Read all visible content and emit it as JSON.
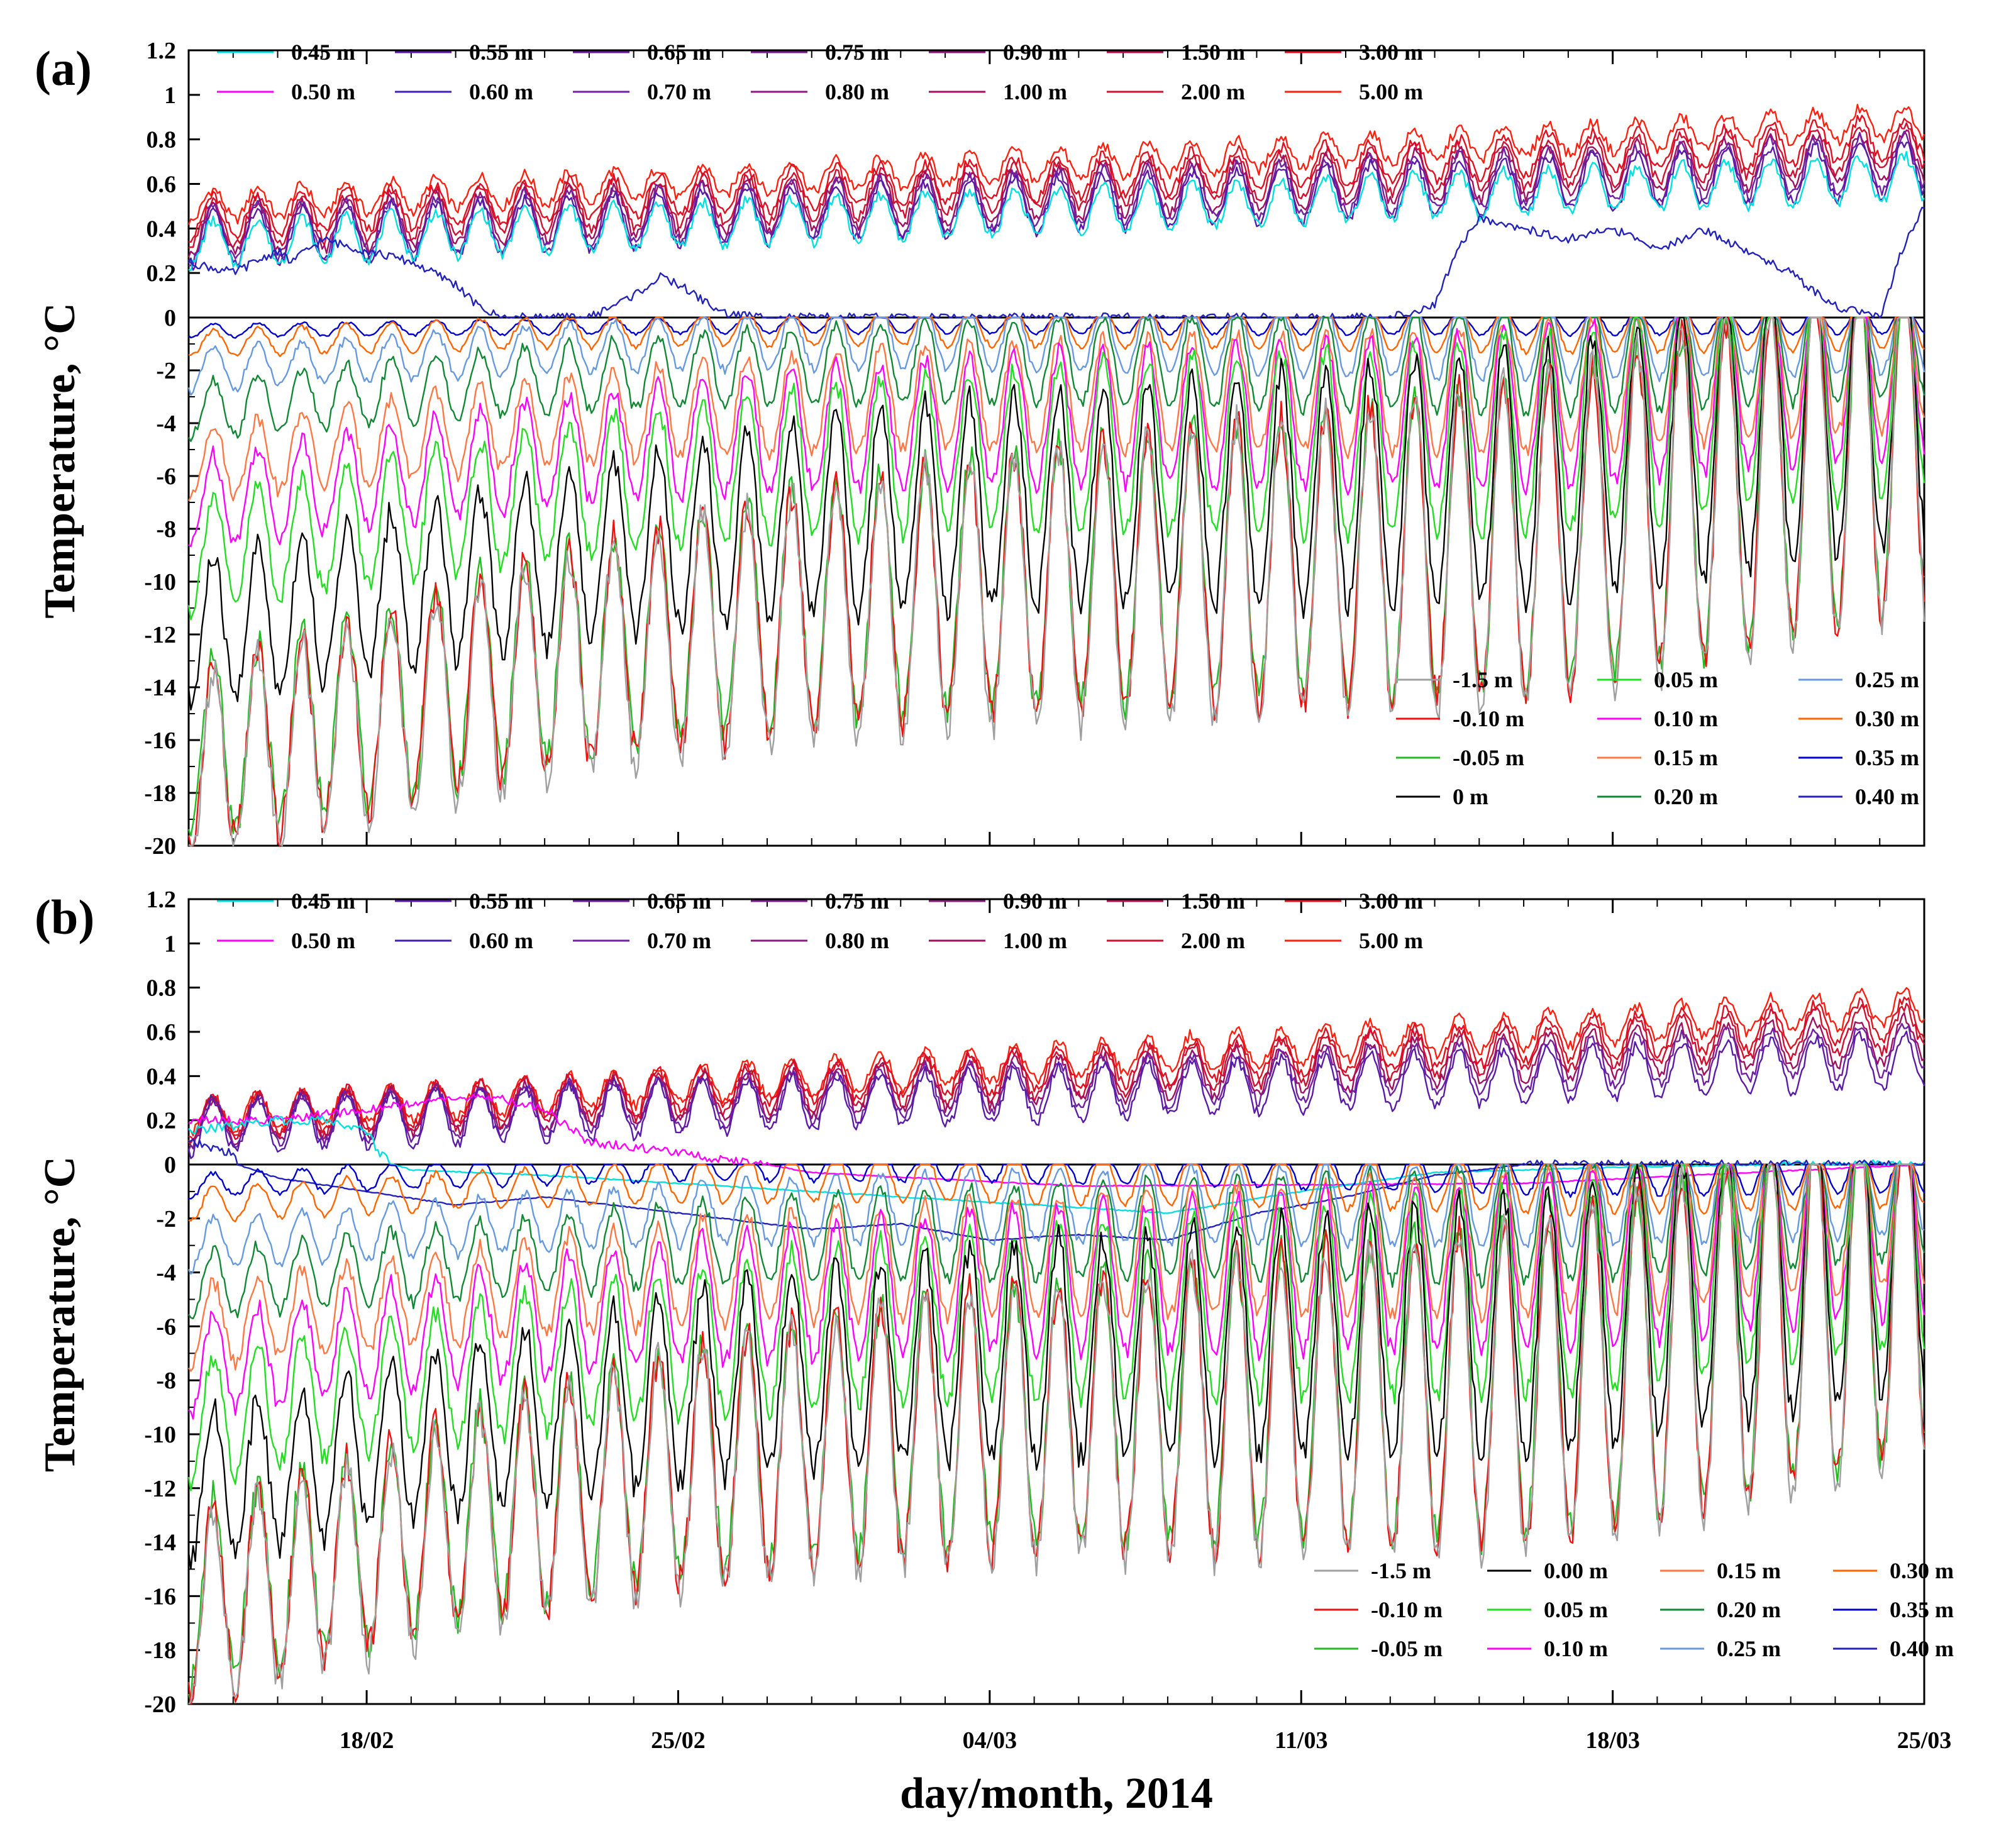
{
  "chart_data": [
    {
      "type": "line",
      "panel_label": "(a)",
      "ylabel": "Temperature, °C",
      "xlabel": "",
      "ylim": [
        -20,
        1.2
      ],
      "yticks": [
        "1.2",
        "1",
        "0.8",
        "0.6",
        "0.4",
        "0.2",
        "0",
        "-2",
        "-4",
        "-6",
        "-8",
        "-10",
        "-12",
        "-14",
        "-16",
        "-18",
        "-20"
      ],
      "xlim_days": [
        0,
        39
      ],
      "xticks": [
        {
          "label": "18/02",
          "day": 4
        },
        {
          "label": "25/02",
          "day": 11
        },
        {
          "label": "04/03",
          "day": 18
        },
        {
          "label": "11/03",
          "day": 25
        },
        {
          "label": "18/03",
          "day": 32
        },
        {
          "label": "25/03",
          "day": 39
        }
      ],
      "legend_top": [
        {
          "label": "0.45 m",
          "color": "#00e0e0"
        },
        {
          "label": "0.55 m",
          "color": "#5a1aa8"
        },
        {
          "label": "0.65 m",
          "color": "#6a1a9a"
        },
        {
          "label": "0.75 m",
          "color": "#7a1a8c"
        },
        {
          "label": "0.90 m",
          "color": "#8a1a7a"
        },
        {
          "label": "1.50 m",
          "color": "#b01050"
        },
        {
          "label": "3.00 m",
          "color": "#e01020"
        },
        {
          "label": "0.50 m",
          "color": "#ff00ff"
        },
        {
          "label": "0.60 m",
          "color": "#4020b0"
        },
        {
          "label": "0.70 m",
          "color": "#7020a0"
        },
        {
          "label": "0.80 m",
          "color": "#8a1a80"
        },
        {
          "label": "1.00 m",
          "color": "#a01060"
        },
        {
          "label": "2.00 m",
          "color": "#d01030"
        },
        {
          "label": "5.00 m",
          "color": "#ff2010"
        }
      ],
      "legend_bottom": [
        {
          "label": "-1.5 m",
          "color": "#a0a0a0"
        },
        {
          "label": "0.05 m",
          "color": "#22dd22"
        },
        {
          "label": "0.25 m",
          "color": "#6699dd"
        },
        {
          "label": "-0.10 m",
          "color": "#ee1111"
        },
        {
          "label": "0.10 m",
          "color": "#ff00ff"
        },
        {
          "label": "0.30 m",
          "color": "#ff6600"
        },
        {
          "label": "-0.05 m",
          "color": "#22bb22"
        },
        {
          "label": "0.15 m",
          "color": "#ff7744"
        },
        {
          "label": "0.35 m",
          "color": "#0000cc"
        },
        {
          "label": "0 m",
          "color": "#000000"
        },
        {
          "label": "0.20 m",
          "color": "#118833"
        },
        {
          "label": "0.40 m",
          "color": "#2222bb"
        }
      ],
      "series": [
        {
          "name": "5.00 m",
          "color": "#ff2010",
          "base": 0.5,
          "trend": 0.38,
          "amp": 0.07
        },
        {
          "name": "3.00 m",
          "color": "#e01020",
          "base": 0.45,
          "trend": 0.36,
          "amp": 0.09
        },
        {
          "name": "2.00 m",
          "color": "#d01030",
          "base": 0.42,
          "trend": 0.35,
          "amp": 0.1
        },
        {
          "name": "1.00 m",
          "color": "#a01060",
          "base": 0.39,
          "trend": 0.34,
          "amp": 0.11
        },
        {
          "name": "0.70 m",
          "color": "#7020a0",
          "base": 0.37,
          "trend": 0.33,
          "amp": 0.12
        },
        {
          "name": "0.55 m",
          "color": "#5a1aa8",
          "base": 0.35,
          "trend": 0.32,
          "amp": 0.12
        },
        {
          "name": "0.45 m",
          "color": "#00e0e0",
          "base": 0.33,
          "trend": 0.3,
          "amp": 0.1
        },
        {
          "name": "0.40 m",
          "color": "#2222bb",
          "values_days": [
            0,
            1,
            2,
            2.3,
            3,
            4,
            5,
            6,
            6.5,
            7,
            8,
            9,
            10,
            10.6,
            11,
            12,
            13,
            15,
            20,
            25,
            26,
            27,
            28,
            28.5,
            29,
            30,
            31,
            32,
            33,
            34,
            35,
            36,
            37,
            38,
            38.5,
            39
          ],
          "values": [
            0.25,
            0.2,
            0.3,
            0.25,
            0.35,
            0.3,
            0.25,
            0.15,
            0.05,
            0,
            0,
            0,
            0.1,
            0.18,
            0.15,
            0.02,
            0,
            0,
            0,
            0,
            0,
            0,
            0.05,
            0.3,
            0.45,
            0.4,
            0.35,
            0.4,
            0.3,
            0.4,
            0.3,
            0.2,
            0.05,
            0,
            0.3,
            0.5
          ]
        },
        {
          "name": "0.35 m",
          "color": "#0000cc",
          "pattern": "cold",
          "base": -0.5,
          "trend": -0.5,
          "amp": 0.4
        },
        {
          "name": "0.30 m",
          "color": "#ff6600",
          "pattern": "cold",
          "base": -1.0,
          "trend": -1.5,
          "amp": 0.8
        },
        {
          "name": "0.25 m",
          "color": "#6699dd",
          "pattern": "cold",
          "base": -2.0,
          "trend": -2.8,
          "amp": 1.3
        },
        {
          "name": "0.20 m",
          "color": "#118833",
          "pattern": "cold",
          "base": -3.5,
          "trend": -4.0,
          "amp": 1.8
        },
        {
          "name": "0.15 m",
          "color": "#ff7744",
          "pattern": "cold",
          "base": -5.5,
          "trend": -5.0,
          "amp": 2.3
        },
        {
          "name": "0.10 m",
          "color": "#ff00ff",
          "pattern": "cold",
          "base": -7.0,
          "trend": -6.0,
          "amp": 2.8
        },
        {
          "name": "0.05 m",
          "color": "#22dd22",
          "pattern": "cold",
          "base": -9.0,
          "trend": -7.5,
          "amp": 3.5
        },
        {
          "name": "0 m",
          "color": "#000000",
          "pattern": "cold",
          "base": -12.0,
          "trend": -9.0,
          "amp": 4.5
        },
        {
          "name": "-0.05 m",
          "color": "#22bb22",
          "pattern": "cold",
          "base": -16.5,
          "trend": -11.0,
          "amp": 5.5
        },
        {
          "name": "-0.10 m",
          "color": "#ee1111",
          "pattern": "cold",
          "base": -16.8,
          "trend": -11.2,
          "amp": 5.6
        },
        {
          "name": "-1.5 m",
          "color": "#a0a0a0",
          "pattern": "cold",
          "base": -17.2,
          "trend": -11.4,
          "amp": 5.8
        }
      ]
    },
    {
      "type": "line",
      "panel_label": "(b)",
      "ylabel": "Temperature, °C",
      "xlabel": "day/month, 2014",
      "ylim": [
        -20,
        1.2
      ],
      "yticks": [
        "1.2",
        "1",
        "0.8",
        "0.6",
        "0.4",
        "0.2",
        "0",
        "-2",
        "-4",
        "-6",
        "-8",
        "-10",
        "-12",
        "-14",
        "-16",
        "-18",
        "-20"
      ],
      "xlim_days": [
        0,
        39
      ],
      "xticks": [
        {
          "label": "18/02",
          "day": 4
        },
        {
          "label": "25/02",
          "day": 11
        },
        {
          "label": "04/03",
          "day": 18
        },
        {
          "label": "11/03",
          "day": 25
        },
        {
          "label": "18/03",
          "day": 32
        },
        {
          "label": "25/03",
          "day": 39
        }
      ],
      "legend_top": [
        {
          "label": "0.45 m",
          "color": "#00e0e0"
        },
        {
          "label": "0.55 m",
          "color": "#5a1aa8"
        },
        {
          "label": "0.65 m",
          "color": "#6a1a9a"
        },
        {
          "label": "0.75 m",
          "color": "#7a1a8c"
        },
        {
          "label": "0.90 m",
          "color": "#8a1a7a"
        },
        {
          "label": "1.50 m",
          "color": "#b01050"
        },
        {
          "label": "3.00 m",
          "color": "#e01020"
        },
        {
          "label": "0.50 m",
          "color": "#ff00ff"
        },
        {
          "label": "0.60 m",
          "color": "#4020b0"
        },
        {
          "label": "0.70 m",
          "color": "#7020a0"
        },
        {
          "label": "0.80 m",
          "color": "#8a1a80"
        },
        {
          "label": "1.00 m",
          "color": "#a01060"
        },
        {
          "label": "2.00 m",
          "color": "#d01030"
        },
        {
          "label": "5.00 m",
          "color": "#ff2010"
        }
      ],
      "legend_bottom": [
        {
          "label": "-1.5 m",
          "color": "#a0a0a0"
        },
        {
          "label": "0.00 m",
          "color": "#000000"
        },
        {
          "label": "0.15 m",
          "color": "#ff7744"
        },
        {
          "label": "0.30 m",
          "color": "#ff6600"
        },
        {
          "label": "-0.10 m",
          "color": "#ee1111"
        },
        {
          "label": "0.05 m",
          "color": "#22dd22"
        },
        {
          "label": "0.20 m",
          "color": "#118833"
        },
        {
          "label": "0.35 m",
          "color": "#0000cc"
        },
        {
          "label": "-0.05 m",
          "color": "#22bb22"
        },
        {
          "label": "0.10 m",
          "color": "#ff00ff"
        },
        {
          "label": "0.25 m",
          "color": "#6699dd"
        },
        {
          "label": "0.40 m",
          "color": "#2222bb"
        }
      ],
      "series": [
        {
          "name": "5.00 m",
          "color": "#ff2010",
          "base": 0.22,
          "trend": 0.5,
          "amp": 0.08
        },
        {
          "name": "3.00 m",
          "color": "#e01020",
          "base": 0.21,
          "trend": 0.45,
          "amp": 0.09
        },
        {
          "name": "2.00 m",
          "color": "#d01030",
          "base": 0.2,
          "trend": 0.42,
          "amp": 0.1
        },
        {
          "name": "1.00 m",
          "color": "#a01060",
          "base": 0.19,
          "trend": 0.38,
          "amp": 0.1
        },
        {
          "name": "0.70 m",
          "color": "#7020a0",
          "base": 0.18,
          "trend": 0.35,
          "amp": 0.11
        },
        {
          "name": "0.55 m",
          "color": "#5a1aa8",
          "base": 0.17,
          "trend": 0.3,
          "amp": 0.12
        },
        {
          "name": "0.50 m",
          "color": "#ff00ff",
          "values_days": [
            0,
            2,
            4,
            6,
            7,
            8,
            9,
            10,
            11,
            12,
            13,
            14,
            20,
            30,
            35,
            39
          ],
          "values": [
            0.2,
            0.2,
            0.25,
            0.3,
            0.3,
            0.25,
            0.1,
            0.08,
            0.05,
            0.02,
            0,
            -0.3,
            -0.8,
            -0.7,
            -0.3,
            0
          ]
        },
        {
          "name": "0.45 m",
          "color": "#00e0e0",
          "values_days": [
            0,
            2,
            3,
            4,
            4.3,
            4.6,
            5,
            8,
            12,
            18,
            22,
            25,
            28,
            32,
            36,
            39
          ],
          "values": [
            0.15,
            0.2,
            0.2,
            0.15,
            0.05,
            0,
            -0.2,
            -0.4,
            -0.8,
            -1.4,
            -1.8,
            -1.0,
            -0.3,
            -0.1,
            0,
            0
          ]
        },
        {
          "name": "0.40 m",
          "color": "#2222bb",
          "values_days": [
            0,
            1,
            2,
            4,
            6,
            8,
            10,
            12,
            14,
            16,
            18,
            20,
            22,
            24,
            26,
            28,
            30,
            32,
            34,
            36,
            38,
            39
          ],
          "values": [
            0.1,
            0.05,
            -0.5,
            -1.0,
            -1.5,
            -1.2,
            -1.6,
            -2.0,
            -2.4,
            -2.2,
            -2.8,
            -2.6,
            -2.8,
            -1.8,
            -1.2,
            -0.4,
            0,
            0,
            0,
            0,
            0,
            0
          ]
        },
        {
          "name": "0.35 m",
          "color": "#0000cc",
          "pattern": "cold",
          "base": -0.8,
          "trend": -2.2,
          "amp": 0.7
        },
        {
          "name": "0.30 m",
          "color": "#ff6600",
          "pattern": "cold",
          "base": -1.5,
          "trend": -2.5,
          "amp": 1.0
        },
        {
          "name": "0.25 m",
          "color": "#6699dd",
          "pattern": "cold",
          "base": -3.0,
          "trend": -3.0,
          "amp": 1.5
        },
        {
          "name": "0.20 m",
          "color": "#118833",
          "pattern": "cold",
          "base": -4.5,
          "trend": -3.8,
          "amp": 2.0
        },
        {
          "name": "0.15 m",
          "color": "#ff7744",
          "pattern": "cold",
          "base": -6.0,
          "trend": -4.8,
          "amp": 2.5
        },
        {
          "name": "0.10 m",
          "color": "#ff00ff",
          "pattern": "cold",
          "base": -7.5,
          "trend": -5.8,
          "amp": 3.0
        },
        {
          "name": "0.05 m",
          "color": "#22dd22",
          "pattern": "cold",
          "base": -9.5,
          "trend": -7.0,
          "amp": 3.6
        },
        {
          "name": "0.00 m",
          "color": "#000000",
          "pattern": "cold",
          "base": -12.0,
          "trend": -9.0,
          "amp": 4.5
        },
        {
          "name": "-0.05 m",
          "color": "#22bb22",
          "pattern": "cold",
          "base": -16.0,
          "trend": -12.0,
          "amp": 5.5
        },
        {
          "name": "-0.10 m",
          "color": "#ee1111",
          "pattern": "cold",
          "base": -16.3,
          "trend": -12.2,
          "amp": 5.6
        },
        {
          "name": "-1.5 m",
          "color": "#a0a0a0",
          "pattern": "cold",
          "base": -16.6,
          "trend": -12.4,
          "amp": 5.7
        }
      ]
    }
  ]
}
